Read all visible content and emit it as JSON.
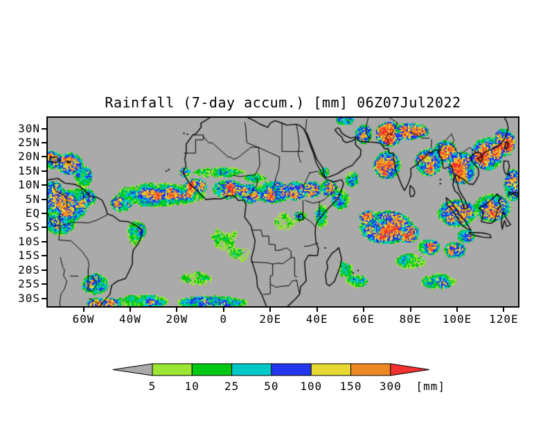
{
  "chart_data": {
    "type": "heatmap",
    "title": "Rainfall (7-day accum.) [mm] 06Z07Jul2022",
    "map_bounds": {
      "lon_min": -75.3,
      "lon_max": 126.1,
      "lat_min": -32.8,
      "lat_max": 33.8
    },
    "background_color": "#aaaaaa",
    "coastline_color": "#000000",
    "axis_color": "#000000",
    "y_axis": {
      "ticks": [
        {
          "label": "30N",
          "lat": 30
        },
        {
          "label": "25N",
          "lat": 25
        },
        {
          "label": "20N",
          "lat": 20
        },
        {
          "label": "15N",
          "lat": 15
        },
        {
          "label": "10N",
          "lat": 10
        },
        {
          "label": "5N",
          "lat": 5
        },
        {
          "label": "EQ",
          "lat": 0
        },
        {
          "label": "5S",
          "lat": -5
        },
        {
          "label": "10S",
          "lat": -10
        },
        {
          "label": "15S",
          "lat": -15
        },
        {
          "label": "20S",
          "lat": -20
        },
        {
          "label": "25S",
          "lat": -25
        },
        {
          "label": "30S",
          "lat": -30
        }
      ]
    },
    "x_axis": {
      "ticks": [
        {
          "label": "60W",
          "lon": -60
        },
        {
          "label": "40W",
          "lon": -40
        },
        {
          "label": "20W",
          "lon": -20
        },
        {
          "label": "0",
          "lon": 0
        },
        {
          "label": "20E",
          "lon": 20
        },
        {
          "label": "40E",
          "lon": 40
        },
        {
          "label": "60E",
          "lon": 60
        },
        {
          "label": "80E",
          "lon": 80
        },
        {
          "label": "100E",
          "lon": 100
        },
        {
          "label": "120E",
          "lon": 120
        }
      ]
    },
    "colorbar": {
      "levels": [
        5,
        10,
        25,
        50,
        100,
        150,
        300
      ],
      "labels": [
        "5",
        "10",
        "25",
        "50",
        "100",
        "150",
        "300"
      ],
      "unit_label": "[mm]",
      "below_color": "#aaaaaa",
      "colors": [
        "#9ae632",
        "#00c814",
        "#00c8c8",
        "#2337ee",
        "#e6d831",
        "#ee8822"
      ],
      "above_color": "#f23030"
    },
    "region_format": [
      "lon",
      "lat",
      "rx_deg",
      "ry_deg",
      "peak_mm"
    ],
    "rain_regions": [
      [
        -73,
        5.5,
        6,
        6,
        260
      ],
      [
        -66,
        3,
        8,
        6,
        170
      ],
      [
        -60.5,
        5.5,
        6,
        4,
        120
      ],
      [
        -70,
        -3,
        7,
        5,
        90
      ],
      [
        -74,
        19,
        5,
        3.5,
        110
      ],
      [
        -66,
        17.5,
        6,
        4,
        130
      ],
      [
        -60,
        13,
        4,
        4,
        90
      ],
      [
        -44,
        3.5,
        5,
        3,
        110
      ],
      [
        -27,
        6.8,
        17,
        2.6,
        270
      ],
      [
        -27,
        6.5,
        20,
        4.5,
        75
      ],
      [
        -38,
        -7,
        4,
        5,
        35
      ],
      [
        -35.2,
        -6,
        2,
        3,
        90
      ],
      [
        -55,
        -25,
        6,
        4,
        85
      ],
      [
        -57,
        -25,
        2.5,
        2,
        140
      ],
      [
        -51,
        -32,
        8,
        2.4,
        170
      ],
      [
        -35,
        -31,
        12,
        2.5,
        55
      ],
      [
        -5,
        -31.5,
        16,
        2.5,
        85
      ],
      [
        -29,
        -31.5,
        5,
        1.6,
        130
      ],
      [
        -12,
        -23,
        8,
        3,
        13
      ],
      [
        -12,
        9.5,
        5,
        3,
        240
      ],
      [
        -16.5,
        14.5,
        2.5,
        2,
        80
      ],
      [
        2,
        8.5,
        7,
        3.5,
        255
      ],
      [
        11,
        7,
        5,
        3.5,
        260
      ],
      [
        21,
        7.5,
        8,
        4,
        170
      ],
      [
        31,
        8,
        5,
        3.5,
        150
      ],
      [
        38,
        8.5,
        4,
        3,
        170
      ],
      [
        45,
        9,
        4,
        3,
        110
      ],
      [
        50,
        5,
        4,
        4,
        60
      ],
      [
        -2,
        14.5,
        12,
        2.2,
        25
      ],
      [
        14,
        12.5,
        6,
        1.8,
        30
      ],
      [
        1,
        -9,
        7,
        5,
        15
      ],
      [
        7,
        -14,
        6,
        4,
        13
      ],
      [
        26,
        -3,
        6,
        4,
        13
      ],
      [
        33,
        -1,
        3,
        2,
        45
      ],
      [
        42,
        -1,
        3,
        5,
        45
      ],
      [
        52,
        -20,
        4,
        3,
        25
      ],
      [
        57,
        -24,
        5,
        2.5,
        35
      ],
      [
        43,
        14.5,
        2.5,
        2,
        50
      ],
      [
        70,
        -5,
        12,
        6,
        220
      ],
      [
        62,
        -2,
        4,
        3,
        270
      ],
      [
        79,
        -7,
        5,
        3.5,
        260
      ],
      [
        88,
        -12,
        5,
        3,
        130
      ],
      [
        70,
        17,
        6,
        5,
        240
      ],
      [
        71,
        28,
        6,
        4.5,
        330
      ],
      [
        60,
        28,
        4,
        3.5,
        210
      ],
      [
        80,
        29,
        8,
        3,
        230
      ],
      [
        88,
        18,
        6,
        5,
        240
      ],
      [
        95,
        22,
        5,
        4,
        260
      ],
      [
        102,
        16,
        6,
        6,
        230
      ],
      [
        113,
        21,
        7,
        6,
        280
      ],
      [
        120,
        25,
        5,
        5,
        300
      ],
      [
        100,
        0,
        9,
        5,
        130
      ],
      [
        115,
        2,
        8,
        5,
        150
      ],
      [
        124,
        10,
        4,
        6,
        180
      ],
      [
        80,
        -17,
        7,
        3,
        30
      ],
      [
        92,
        -24,
        8,
        3,
        45
      ],
      [
        94,
        -25,
        4,
        1.8,
        80
      ],
      [
        99,
        -13,
        5,
        3,
        120
      ],
      [
        104,
        -8,
        4,
        2.5,
        90
      ],
      [
        52,
        33,
        4,
        2,
        120
      ],
      [
        55,
        12,
        3,
        3,
        50
      ]
    ]
  }
}
